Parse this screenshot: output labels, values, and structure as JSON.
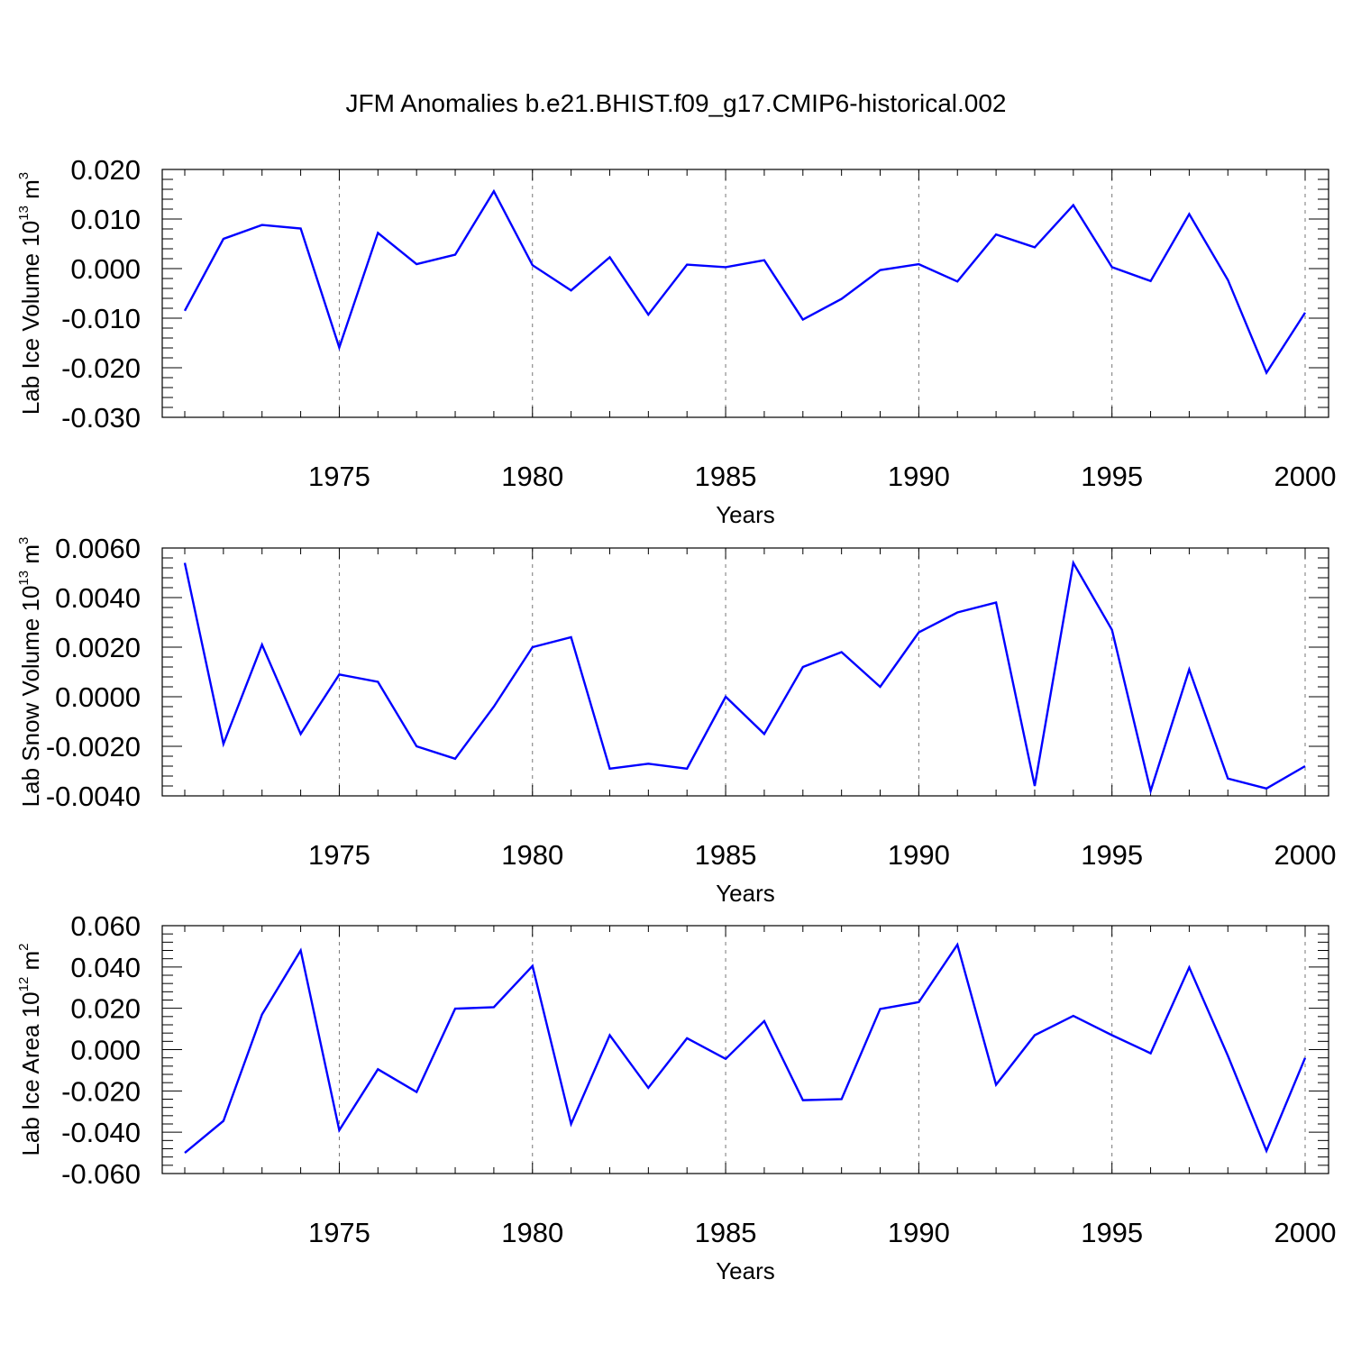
{
  "title": "JFM Anomalies b.e21.BHIST.f09_g17.CMIP6-historical.002",
  "line_color": "#0000ff",
  "chart_data": [
    {
      "type": "line",
      "name": "ice-volume",
      "ylabel_main": "Lab Ice Volume 10",
      "ylabel_exp": "13",
      "ylabel_unit": " m",
      "ylabel_unit_exp": "3",
      "xlabel": "Years",
      "xlim": [
        1971,
        2000
      ],
      "ylim": [
        -0.03,
        0.02
      ],
      "xticks": [
        1975,
        1980,
        1985,
        1990,
        1995,
        2000
      ],
      "xtick_labels": [
        "1975",
        "1980",
        "1985",
        "1990",
        "1995",
        "2000"
      ],
      "yticks": [
        0.02,
        0.01,
        0.0,
        -0.01,
        -0.02,
        -0.03
      ],
      "ytick_labels": [
        "0.020",
        "0.010",
        "0.000",
        "-0.010",
        "-0.020",
        "-0.030"
      ],
      "grid_x": true,
      "x": [
        1971,
        1972,
        1973,
        1974,
        1975,
        1976,
        1977,
        1978,
        1979,
        1980,
        1981,
        1982,
        1983,
        1984,
        1985,
        1986,
        1987,
        1988,
        1989,
        1990,
        1991,
        1992,
        1993,
        1994,
        1995,
        1996,
        1997,
        1998,
        1999,
        2000
      ],
      "values": [
        -0.0085,
        0.006,
        0.0088,
        0.0081,
        -0.0159,
        0.0072,
        0.0009,
        0.0028,
        0.0156,
        0.0007,
        -0.0044,
        0.0023,
        -0.0093,
        0.0008,
        0.0003,
        0.0017,
        -0.0103,
        -0.0061,
        -0.0003,
        0.0009,
        -0.0026,
        0.0069,
        0.0043,
        0.0128,
        0.0003,
        -0.0025,
        0.011,
        -0.0023,
        -0.021,
        -0.0089
      ]
    },
    {
      "type": "line",
      "name": "snow-volume",
      "ylabel_main": "Lab Snow Volume 10",
      "ylabel_exp": "13",
      "ylabel_unit": " m",
      "ylabel_unit_exp": "3",
      "xlabel": "Years",
      "xlim": [
        1971,
        2000
      ],
      "ylim": [
        -0.004,
        0.006
      ],
      "xticks": [
        1975,
        1980,
        1985,
        1990,
        1995,
        2000
      ],
      "xtick_labels": [
        "1975",
        "1980",
        "1985",
        "1990",
        "1995",
        "2000"
      ],
      "yticks": [
        0.006,
        0.004,
        0.002,
        0.0,
        -0.002,
        -0.004
      ],
      "ytick_labels": [
        "0.0060",
        "0.0040",
        "0.0020",
        "0.0000",
        "-0.0020",
        "-0.0040"
      ],
      "grid_x": true,
      "x": [
        1971,
        1972,
        1973,
        1974,
        1975,
        1976,
        1977,
        1978,
        1979,
        1980,
        1981,
        1982,
        1983,
        1984,
        1985,
        1986,
        1987,
        1988,
        1989,
        1990,
        1991,
        1992,
        1993,
        1994,
        1995,
        1996,
        1997,
        1998,
        1999,
        2000
      ],
      "values": [
        0.0054,
        -0.0019,
        0.0021,
        -0.0015,
        0.0009,
        0.0006,
        -0.002,
        -0.0025,
        -0.0004,
        0.002,
        0.0024,
        -0.0029,
        -0.0027,
        -0.0029,
        0.0,
        -0.0015,
        0.0012,
        0.0018,
        0.0004,
        0.0026,
        0.0034,
        0.0038,
        -0.0036,
        0.0054,
        0.0027,
        -0.0038,
        0.0011,
        -0.0033,
        -0.0037,
        -0.0028
      ]
    },
    {
      "type": "line",
      "name": "ice-area",
      "ylabel_main": "Lab Ice Area 10",
      "ylabel_exp": "12",
      "ylabel_unit": " m",
      "ylabel_unit_exp": "2",
      "xlabel": "Years",
      "xlim": [
        1971,
        2000
      ],
      "ylim": [
        -0.06,
        0.06
      ],
      "xticks": [
        1975,
        1980,
        1985,
        1990,
        1995,
        2000
      ],
      "xtick_labels": [
        "1975",
        "1980",
        "1985",
        "1990",
        "1995",
        "2000"
      ],
      "yticks": [
        0.06,
        0.04,
        0.02,
        0.0,
        -0.02,
        -0.04,
        -0.06
      ],
      "ytick_labels": [
        "0.060",
        "0.040",
        "0.020",
        "0.000",
        "-0.020",
        "-0.040",
        "-0.060"
      ],
      "grid_x": true,
      "x": [
        1971,
        1972,
        1973,
        1974,
        1975,
        1976,
        1977,
        1978,
        1979,
        1980,
        1981,
        1982,
        1983,
        1984,
        1985,
        1986,
        1987,
        1988,
        1989,
        1990,
        1991,
        1992,
        1993,
        1994,
        1995,
        1996,
        1997,
        1998,
        1999,
        2000
      ],
      "values": [
        -0.05,
        -0.0345,
        0.017,
        0.048,
        -0.039,
        -0.0095,
        -0.0205,
        0.0198,
        0.0205,
        0.0405,
        -0.036,
        0.007,
        -0.0185,
        0.0055,
        -0.0045,
        0.0138,
        -0.0245,
        -0.024,
        0.0197,
        0.023,
        0.0508,
        -0.017,
        0.007,
        0.0163,
        0.007,
        -0.0018,
        0.0398,
        -0.003,
        -0.049,
        -0.004
      ]
    }
  ]
}
